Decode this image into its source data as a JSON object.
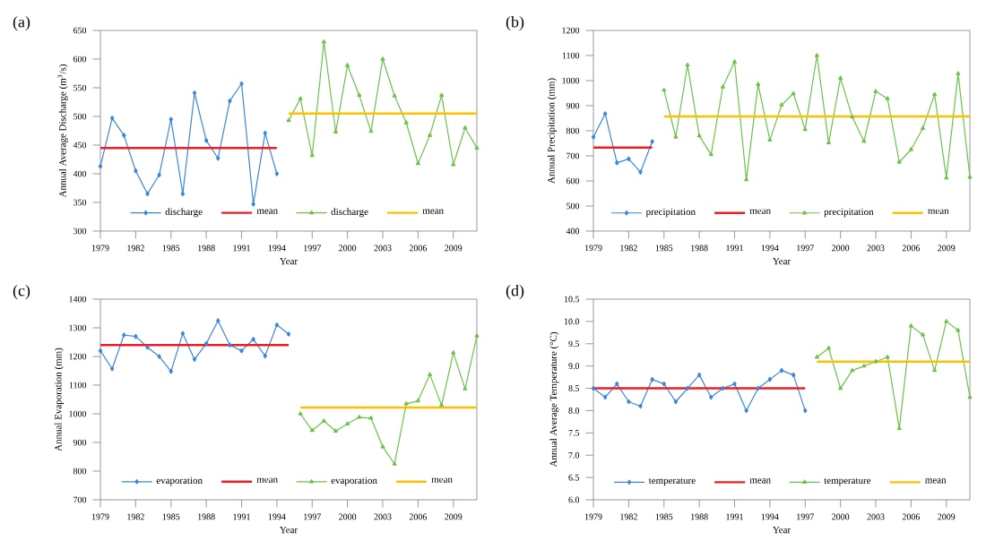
{
  "chart_data": [
    {
      "type": "line",
      "title": "(a)",
      "xlabel": "Year",
      "ylabel": "Annual Average Discharge (m$^{3}$/s)",
      "xlim": [
        1979,
        2011
      ],
      "xticks": [
        1979,
        1982,
        1985,
        1988,
        1991,
        1994,
        1997,
        2000,
        2003,
        2006,
        2009
      ],
      "ylim": [
        300,
        650
      ],
      "yticks": [
        300,
        350,
        400,
        450,
        500,
        550,
        600,
        650
      ],
      "legend": "bottom",
      "series": [
        {
          "name": "discharge",
          "color": "#3b87d9",
          "marker": "diamond",
          "x": [
            1979,
            1980,
            1981,
            1982,
            1983,
            1984,
            1985,
            1986,
            1987,
            1988,
            1989,
            1990,
            1991,
            1992,
            1993,
            1994
          ],
          "values": [
            413,
            497,
            467,
            405,
            365,
            398,
            495,
            365,
            541,
            458,
            427,
            527,
            557,
            347,
            471,
            400
          ]
        },
        {
          "name": "mean",
          "color": "#ee1c24",
          "marker": "none",
          "x": [
            1979,
            1994
          ],
          "values": [
            445,
            445
          ]
        },
        {
          "name": "discharge",
          "color": "#6cc24a",
          "marker": "triangle",
          "x": [
            1995,
            1996,
            1997,
            1998,
            1999,
            2000,
            2001,
            2002,
            2003,
            2004,
            2005,
            2006,
            2007,
            2008,
            2009,
            2010,
            2011
          ],
          "values": [
            493,
            531,
            432,
            630,
            473,
            589,
            537,
            474,
            600,
            536,
            489,
            418,
            467,
            537,
            416,
            480,
            445
          ]
        },
        {
          "name": "mean",
          "color": "#ffc000",
          "marker": "none",
          "x": [
            1995,
            2011
          ],
          "values": [
            505,
            505
          ]
        }
      ]
    },
    {
      "type": "line",
      "title": "(b)",
      "xlabel": "Year",
      "ylabel": "Annual Precipitation (mm)",
      "xlim": [
        1979,
        2011
      ],
      "xticks": [
        1979,
        1982,
        1985,
        1988,
        1991,
        1994,
        1997,
        2000,
        2003,
        2006,
        2009
      ],
      "ylim": [
        400,
        1200
      ],
      "yticks": [
        400,
        500,
        600,
        700,
        800,
        900,
        1000,
        1100,
        1200
      ],
      "legend": "bottom",
      "series": [
        {
          "name": "precipitation",
          "color": "#3b87d9",
          "marker": "diamond",
          "x": [
            1979,
            1980,
            1981,
            1982,
            1983,
            1984
          ],
          "values": [
            775,
            868,
            672,
            688,
            635,
            757
          ]
        },
        {
          "name": "mean",
          "color": "#ee1c24",
          "marker": "none",
          "x": [
            1979,
            1984
          ],
          "values": [
            733,
            733
          ]
        },
        {
          "name": "precipitation",
          "color": "#6cc24a",
          "marker": "triangle",
          "x": [
            1985,
            1986,
            1987,
            1988,
            1989,
            1990,
            1991,
            1992,
            1993,
            1994,
            1995,
            1996,
            1997,
            1998,
            1999,
            2000,
            2001,
            2002,
            2003,
            2004,
            2005,
            2006,
            2007,
            2008,
            2009,
            2010,
            2011
          ],
          "values": [
            962,
            775,
            1062,
            780,
            705,
            975,
            1075,
            605,
            985,
            763,
            903,
            948,
            805,
            1100,
            752,
            1010,
            855,
            758,
            957,
            928,
            675,
            725,
            810,
            945,
            612,
            1028,
            615
          ]
        },
        {
          "name": "mean",
          "color": "#ffc000",
          "marker": "none",
          "x": [
            1985,
            2011
          ],
          "values": [
            857,
            857
          ]
        }
      ]
    },
    {
      "type": "line",
      "title": "(c)",
      "xlabel": "Year",
      "ylabel": "Annual Evaporation (mm)",
      "xlim": [
        1979,
        2011
      ],
      "xticks": [
        1979,
        1982,
        1985,
        1988,
        1991,
        1994,
        1997,
        2000,
        2003,
        2006,
        2009
      ],
      "ylim": [
        700,
        1400
      ],
      "yticks": [
        700,
        800,
        900,
        1000,
        1100,
        1200,
        1300,
        1400
      ],
      "legend": "bottom",
      "series": [
        {
          "name": "evaporation",
          "color": "#3b87d9",
          "marker": "diamond",
          "x": [
            1979,
            1980,
            1981,
            1982,
            1983,
            1984,
            1985,
            1986,
            1987,
            1988,
            1989,
            1990,
            1991,
            1992,
            1993,
            1994,
            1995
          ],
          "values": [
            1220,
            1157,
            1275,
            1270,
            1232,
            1200,
            1148,
            1280,
            1190,
            1245,
            1325,
            1240,
            1220,
            1260,
            1202,
            1310,
            1278
          ]
        },
        {
          "name": "mean",
          "color": "#ee1c24",
          "marker": "none",
          "x": [
            1979,
            1995
          ],
          "values": [
            1240,
            1240
          ]
        },
        {
          "name": "evaporation",
          "color": "#6cc24a",
          "marker": "triangle",
          "x": [
            1996,
            1997,
            1998,
            1999,
            2000,
            2001,
            2002,
            2003,
            2004,
            2005,
            2006,
            2007,
            2008,
            2009,
            2010,
            2011
          ],
          "values": [
            1000,
            942,
            975,
            940,
            965,
            988,
            985,
            885,
            825,
            1035,
            1045,
            1137,
            1030,
            1213,
            1087,
            1272
          ]
        },
        {
          "name": "mean",
          "color": "#ffc000",
          "marker": "none",
          "x": [
            1996,
            2011
          ],
          "values": [
            1022,
            1022
          ]
        }
      ]
    },
    {
      "type": "line",
      "title": "(d)",
      "xlabel": "Year",
      "ylabel": "Annual Average Temperature (°C)",
      "xlim": [
        1979,
        2011
      ],
      "xticks": [
        1979,
        1982,
        1985,
        1988,
        1991,
        1994,
        1997,
        2000,
        2003,
        2006,
        2009
      ],
      "ylim": [
        6,
        10.5
      ],
      "yticks": [
        {
          "value": 6,
          "label": "6.0"
        },
        6.5,
        {
          "value": 7,
          "label": "7.0"
        },
        7.5,
        {
          "value": 8,
          "label": "8.0"
        },
        8.5,
        {
          "value": 9,
          "label": "9.0"
        },
        9.5,
        {
          "value": 10,
          "label": "10.0"
        },
        10.5
      ],
      "legend": "bottom",
      "series": [
        {
          "name": "temperature",
          "color": "#3b87d9",
          "marker": "diamond",
          "x": [
            1979,
            1980,
            1981,
            1982,
            1983,
            1984,
            1985,
            1986,
            1987,
            1988,
            1989,
            1990,
            1991,
            1992,
            1993,
            1994,
            1995,
            1996,
            1997
          ],
          "values": [
            8.5,
            8.3,
            8.6,
            8.2,
            8.1,
            8.7,
            8.6,
            8.2,
            8.5,
            8.8,
            8.3,
            8.5,
            8.6,
            8.0,
            8.5,
            8.7,
            8.9,
            8.8,
            8.0
          ]
        },
        {
          "name": "mean",
          "color": "#ee1c24",
          "marker": "none",
          "x": [
            1979,
            1997
          ],
          "values": [
            8.5,
            8.5
          ]
        },
        {
          "name": "temperature",
          "color": "#6cc24a",
          "marker": "triangle",
          "x": [
            1998,
            1999,
            2000,
            2001,
            2002,
            2003,
            2004,
            2005,
            2006,
            2007,
            2008,
            2009,
            2010,
            2011
          ],
          "values": [
            9.2,
            9.4,
            8.5,
            8.9,
            9.0,
            9.1,
            9.2,
            7.6,
            9.9,
            9.7,
            8.9,
            10.0,
            9.8,
            8.3
          ]
        },
        {
          "name": "mean",
          "color": "#ffc000",
          "marker": "none",
          "x": [
            1998,
            2011
          ],
          "values": [
            9.1,
            9.1
          ]
        }
      ]
    }
  ]
}
